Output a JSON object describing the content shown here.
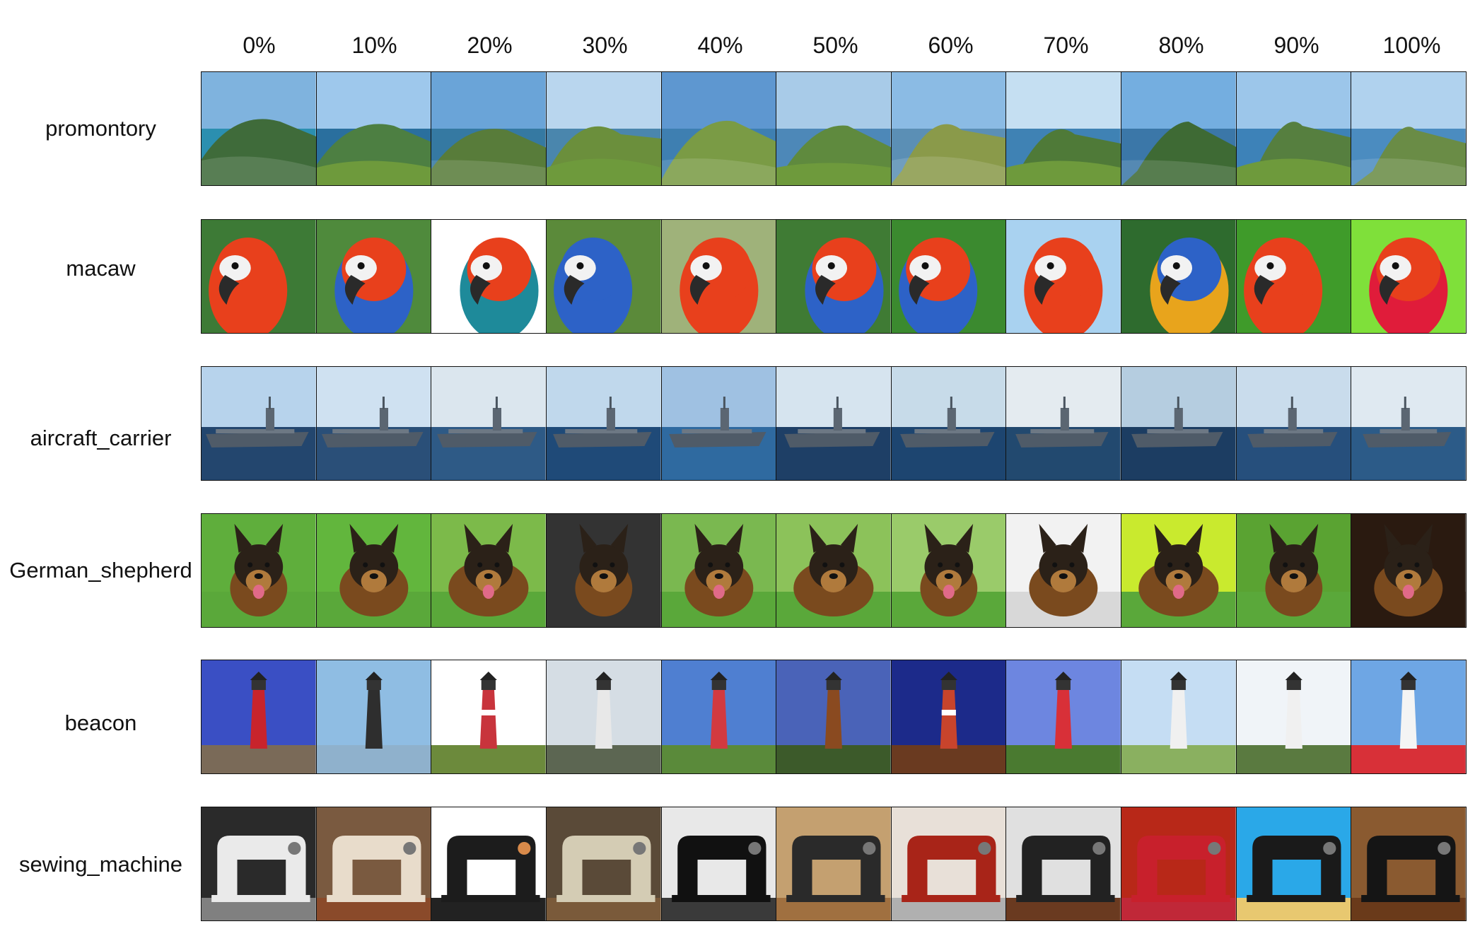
{
  "columns": [
    "0%",
    "10%",
    "20%",
    "30%",
    "40%",
    "50%",
    "60%",
    "70%",
    "80%",
    "90%",
    "100%"
  ],
  "rows": [
    {
      "label": "promontory",
      "scene": "coast",
      "tiles": [
        "promontory-scene",
        "promontory-scene",
        "promontory-scene",
        "promontory-scene",
        "promontory-scene",
        "promontory-scene",
        "promontory-scene",
        "promontory-scene",
        "promontory-scene",
        "promontory-scene",
        "promontory-scene"
      ]
    },
    {
      "label": "macaw",
      "scene": "parrot",
      "tiles": [
        "macaw-scene",
        "macaw-scene",
        "macaw-scene",
        "macaw-scene",
        "macaw-scene",
        "macaw-scene",
        "macaw-scene",
        "macaw-scene",
        "macaw-scene",
        "macaw-scene",
        "macaw-scene"
      ]
    },
    {
      "label": "aircraft_carrier",
      "scene": "ship",
      "tiles": [
        "carrier-scene",
        "carrier-scene",
        "carrier-scene",
        "carrier-scene",
        "carrier-scene",
        "carrier-scene",
        "carrier-scene",
        "carrier-scene",
        "carrier-scene",
        "carrier-scene",
        "carrier-scene"
      ]
    },
    {
      "label": "German_shepherd",
      "scene": "dog",
      "tiles": [
        "shepherd-scene",
        "shepherd-scene",
        "shepherd-scene",
        "shepherd-scene",
        "shepherd-scene",
        "shepherd-scene",
        "shepherd-scene",
        "shepherd-scene",
        "shepherd-scene",
        "shepherd-scene",
        "shepherd-scene"
      ]
    },
    {
      "label": "beacon",
      "scene": "lighthouse",
      "tiles": [
        "lighthouse-scene",
        "lighthouse-scene",
        "lighthouse-scene",
        "lighthouse-scene",
        "lighthouse-scene",
        "lighthouse-scene",
        "lighthouse-scene",
        "lighthouse-scene",
        "lighthouse-scene",
        "lighthouse-scene",
        "lighthouse-scene"
      ]
    },
    {
      "label": "sewing_machine",
      "scene": "sewing",
      "tiles": [
        "sewing-scene",
        "sewing-scene",
        "sewing-scene",
        "sewing-scene",
        "sewing-scene",
        "sewing-scene",
        "sewing-scene",
        "sewing-scene",
        "sewing-scene",
        "sewing-scene",
        "sewing-scene"
      ]
    }
  ]
}
